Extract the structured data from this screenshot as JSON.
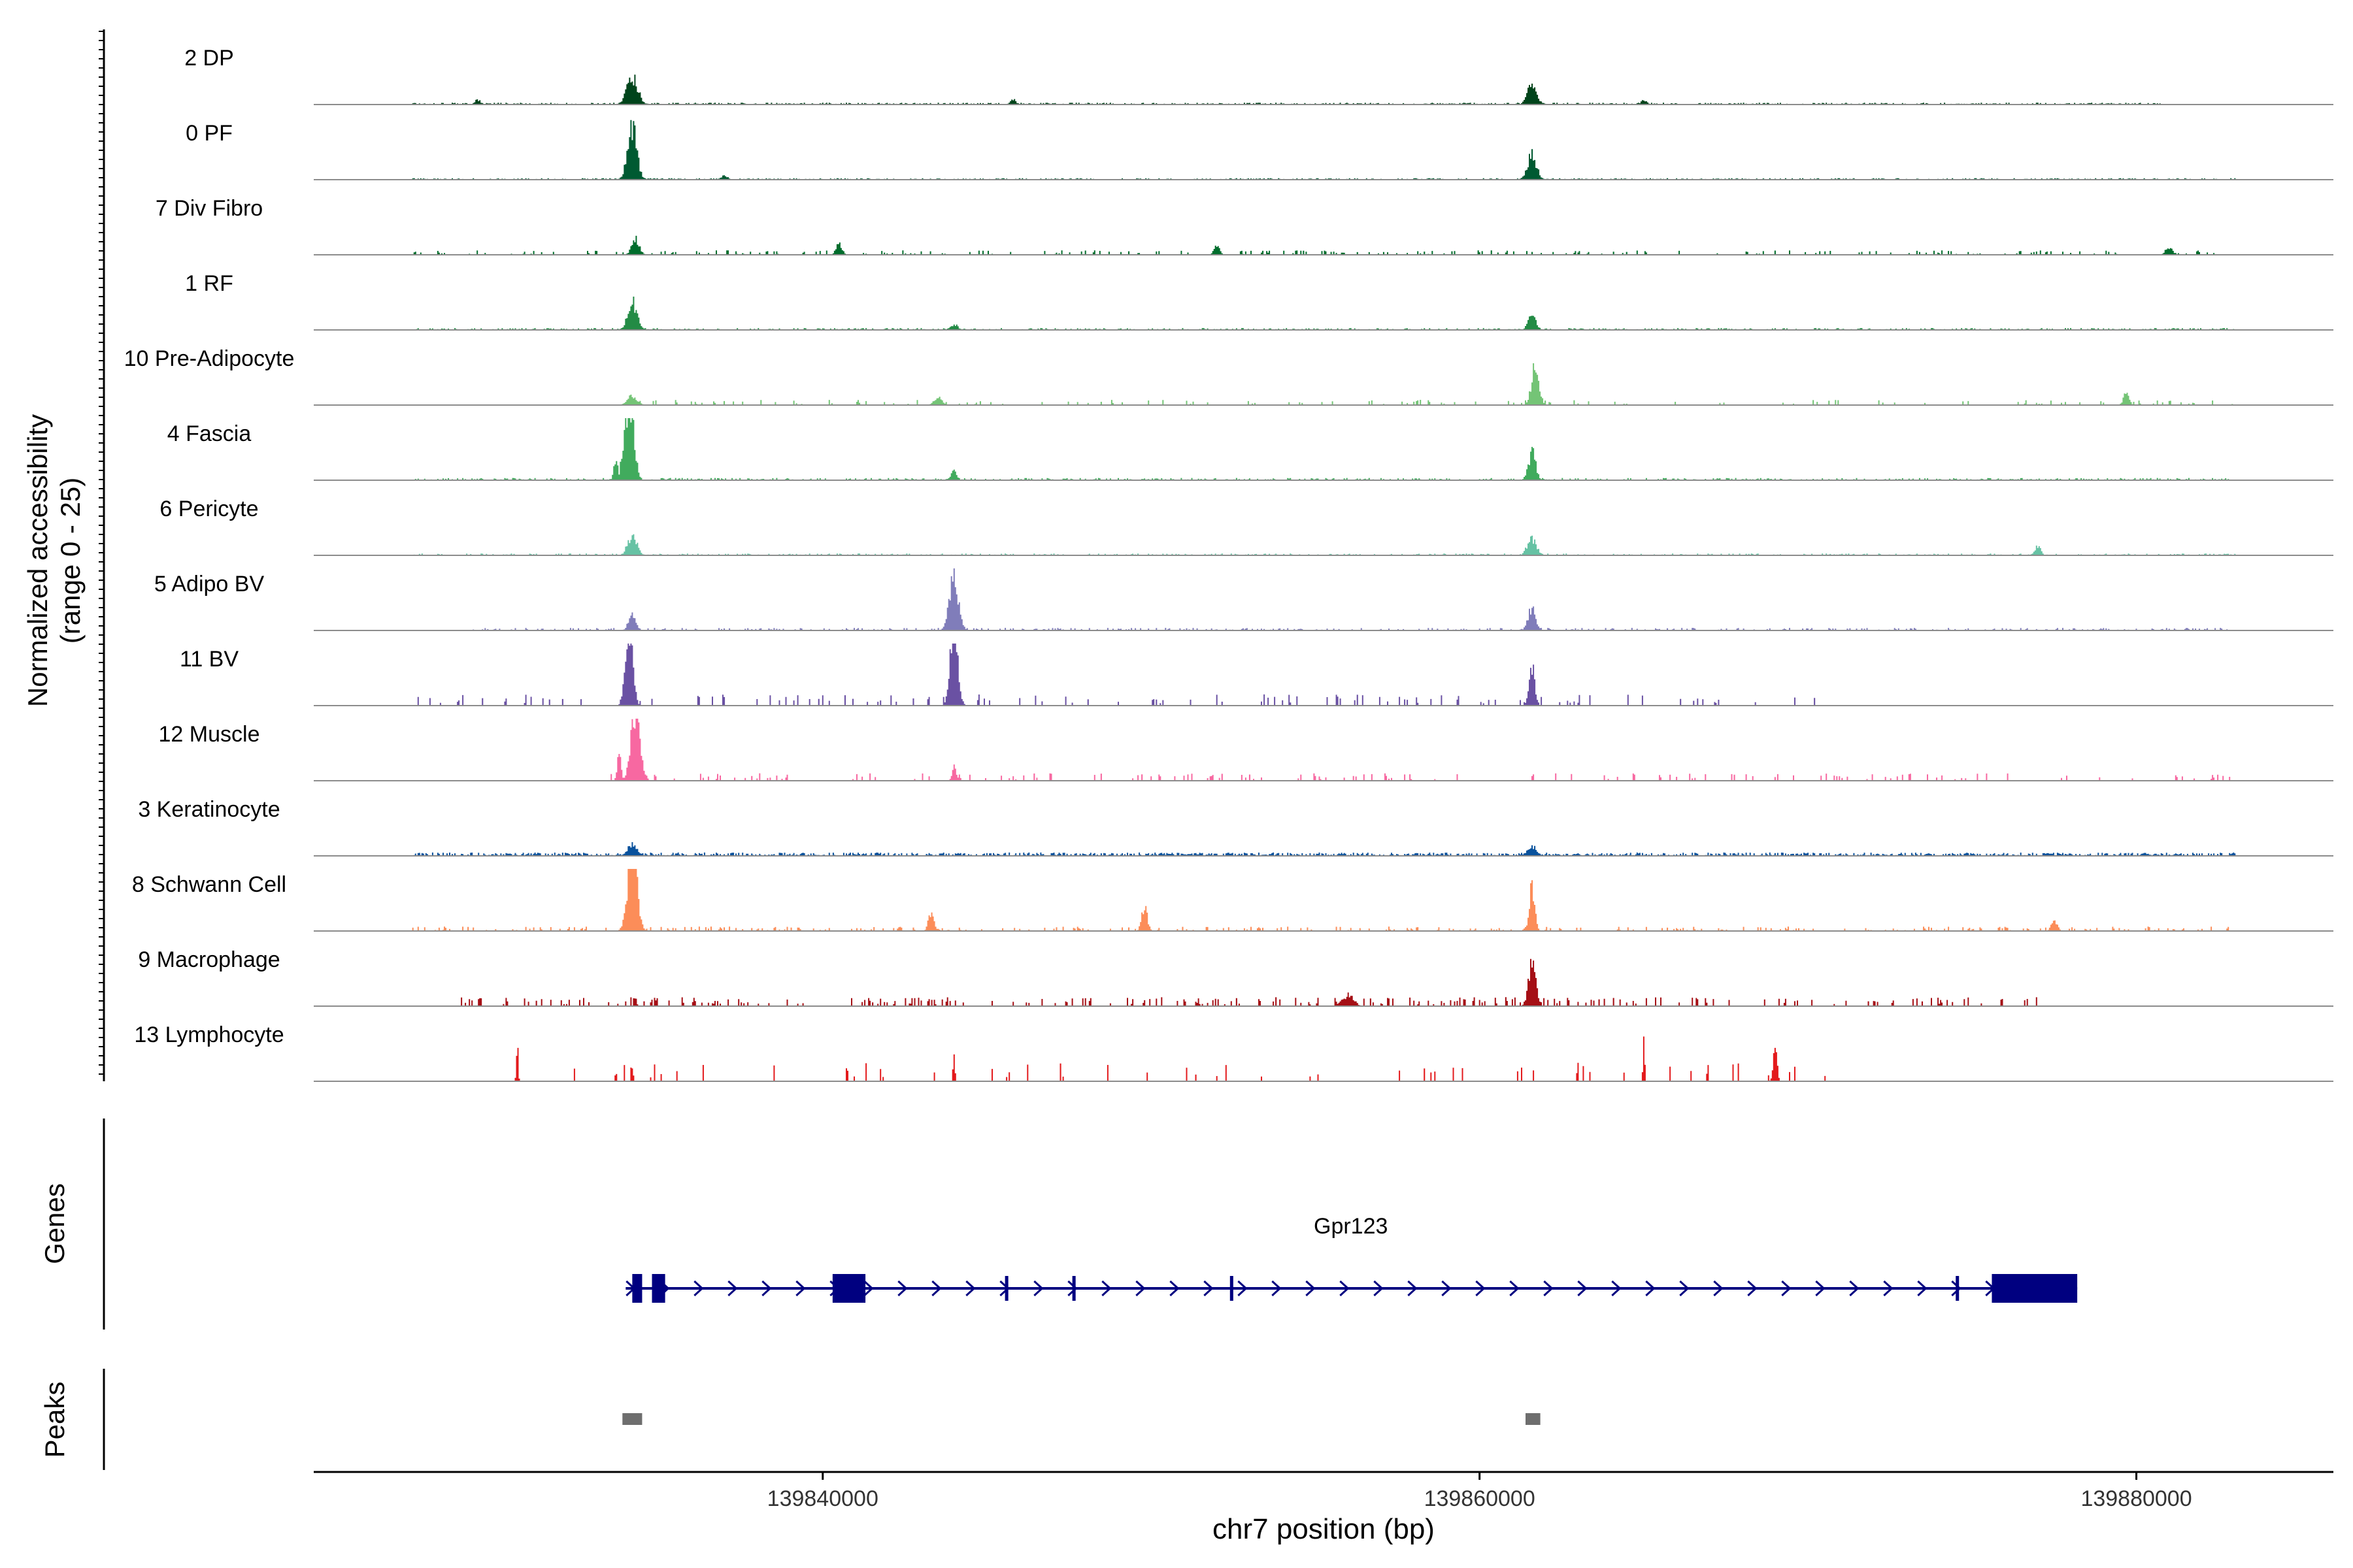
{
  "chart_data": {
    "type": "area",
    "title": "",
    "xlabel": "chr7 position (bp)",
    "ylabel_line1": "Normalized accessibility",
    "ylabel_line2": "(range 0 - 25)",
    "xlim": [
      139824500,
      139886000
    ],
    "ylim": [
      0,
      25
    ],
    "x_ticks": [
      139840000,
      139860000,
      139880000
    ],
    "x_tick_labels": [
      "139840000",
      "139860000",
      "139880000"
    ],
    "panel_labels": {
      "genes": "Genes",
      "peaks": "Peaks"
    },
    "series": [
      {
        "name": "2 DP",
        "color": "#00441b",
        "peaks": [
          [
            139834200,
            4.5,
            0.6
          ],
          [
            139861600,
            3.2,
            0.5
          ],
          [
            139829500,
            0.8,
            0.3
          ],
          [
            139845800,
            0.8,
            0.3
          ],
          [
            139865000,
            0.8,
            0.3
          ]
        ],
        "bg": 0.25,
        "bgStart": 139827500,
        "bgEnd": 139880800,
        "dens": 0.5
      },
      {
        "name": "0 PF",
        "color": "#005a32",
        "peaks": [
          [
            139834200,
            8.5,
            0.5
          ],
          [
            139861600,
            4.0,
            0.5
          ],
          [
            139837000,
            0.6,
            0.4
          ]
        ],
        "bg": 0.2,
        "bgStart": 139827500,
        "bgEnd": 139883000,
        "dens": 0.5
      },
      {
        "name": "7 Div Fibro",
        "color": "#006d2c",
        "peaks": [
          [
            139834300,
            2.5,
            0.4
          ],
          [
            139840500,
            2.0,
            0.3
          ],
          [
            139852000,
            1.4,
            0.3
          ],
          [
            139881000,
            1.2,
            0.4
          ]
        ],
        "bg": 0.6,
        "bgStart": 139827500,
        "bgEnd": 139883000,
        "dens": 0.15
      },
      {
        "name": "1 RF",
        "color": "#238b45",
        "peaks": [
          [
            139834200,
            4.5,
            0.5
          ],
          [
            139861600,
            2.7,
            0.4
          ],
          [
            139844000,
            0.9,
            0.4
          ]
        ],
        "bg": 0.25,
        "bgStart": 139827500,
        "bgEnd": 139883000,
        "dens": 0.4
      },
      {
        "name": "10 Pre-Adipocyte",
        "color": "#74c476",
        "peaks": [
          [
            139834200,
            1.6,
            0.5
          ],
          [
            139843500,
            1.4,
            0.4
          ],
          [
            139861700,
            6.5,
            0.4
          ],
          [
            139879700,
            2.0,
            0.3
          ]
        ],
        "bg": 0.7,
        "bgStart": 139833800,
        "bgEnd": 139883000,
        "dens": 0.12
      },
      {
        "name": "4 Fascia",
        "color": "#41ab5d",
        "peaks": [
          [
            139834100,
            13.5,
            0.5
          ],
          [
            139833700,
            3.5,
            0.2
          ],
          [
            139861600,
            4.5,
            0.4
          ],
          [
            139844000,
            1.5,
            0.3
          ]
        ],
        "bg": 0.3,
        "bgStart": 139827500,
        "bgEnd": 139883000,
        "dens": 0.4
      },
      {
        "name": "6 Pericyte",
        "color": "#66c2a4",
        "peaks": [
          [
            139834200,
            3.2,
            0.5
          ],
          [
            139861600,
            2.8,
            0.5
          ],
          [
            139877000,
            1.5,
            0.3
          ]
        ],
        "bg": 0.25,
        "bgStart": 139827500,
        "bgEnd": 139883000,
        "dens": 0.35
      },
      {
        "name": "5 Adipo BV",
        "color": "#807dba",
        "peaks": [
          [
            139844000,
            8.5,
            0.5
          ],
          [
            139834200,
            2.5,
            0.4
          ],
          [
            139861600,
            4.0,
            0.4
          ]
        ],
        "bg": 0.35,
        "bgStart": 139829000,
        "bgEnd": 139882800,
        "dens": 0.3
      },
      {
        "name": "11 BV",
        "color": "#6a51a3",
        "peaks": [
          [
            139834100,
            12.5,
            0.4
          ],
          [
            139844000,
            14.0,
            0.4
          ],
          [
            139861600,
            7.0,
            0.3
          ]
        ],
        "bg": 1.5,
        "bgStart": 139827500,
        "bgEnd": 139870500,
        "dens": 0.12
      },
      {
        "name": "12 Muscle",
        "color": "#f768a1",
        "peaks": [
          [
            139834300,
            12.5,
            0.5
          ],
          [
            139833800,
            4.0,
            0.2
          ],
          [
            139844000,
            2.5,
            0.2
          ]
        ],
        "bg": 1.0,
        "bgStart": 139833500,
        "bgEnd": 139883000,
        "dens": 0.12
      },
      {
        "name": "3 Keratinocyte",
        "color": "#08519c",
        "peaks": [
          [
            139834200,
            1.8,
            0.5
          ],
          [
            139861600,
            1.6,
            0.5
          ]
        ],
        "bg": 0.45,
        "bgStart": 139827500,
        "bgEnd": 139883000,
        "dens": 0.6
      },
      {
        "name": "8 Schwann Cell",
        "color": "#fc8d59",
        "peaks": [
          [
            139834200,
            13.5,
            0.5
          ],
          [
            139861600,
            7.0,
            0.3
          ],
          [
            139849800,
            4.0,
            0.3
          ],
          [
            139843300,
            2.8,
            0.3
          ],
          [
            139877500,
            2.0,
            0.3
          ]
        ],
        "bg": 0.6,
        "bgStart": 139827500,
        "bgEnd": 139883000,
        "dens": 0.2
      },
      {
        "name": "9 Macrophage",
        "color": "#a50f15",
        "peaks": [
          [
            139861600,
            6.5,
            0.4
          ],
          [
            139856000,
            1.8,
            0.6
          ]
        ],
        "bg": 1.2,
        "bgStart": 139829000,
        "bgEnd": 139877000,
        "dens": 0.22
      },
      {
        "name": "13 Lymphocyte",
        "color": "#e31a1c",
        "peaks": [
          [
            139830700,
            6.0,
            0.1
          ],
          [
            139834200,
            3.0,
            0.1
          ],
          [
            139844000,
            5.0,
            0.1
          ],
          [
            139865000,
            6.0,
            0.1
          ],
          [
            139869000,
            6.5,
            0.2
          ]
        ],
        "bg": 2.5,
        "bgStart": 139830000,
        "bgEnd": 139871000,
        "dens": 0.05
      }
    ],
    "gene": {
      "name": "Gpr123",
      "strand": "+",
      "start": 139834000,
      "end": 139878200,
      "exons": [
        [
          139834200,
          139834500
        ],
        [
          139834800,
          139835200
        ],
        [
          139840300,
          139841300
        ],
        [
          139845550,
          139845650
        ],
        [
          139847600,
          139847700
        ],
        [
          139852400,
          139852500
        ],
        [
          139874500,
          139874600
        ],
        [
          139875600,
          139878200
        ]
      ]
    },
    "peaks_track": [
      [
        139833900,
        139834500
      ],
      [
        139861400,
        139861850
      ]
    ]
  }
}
